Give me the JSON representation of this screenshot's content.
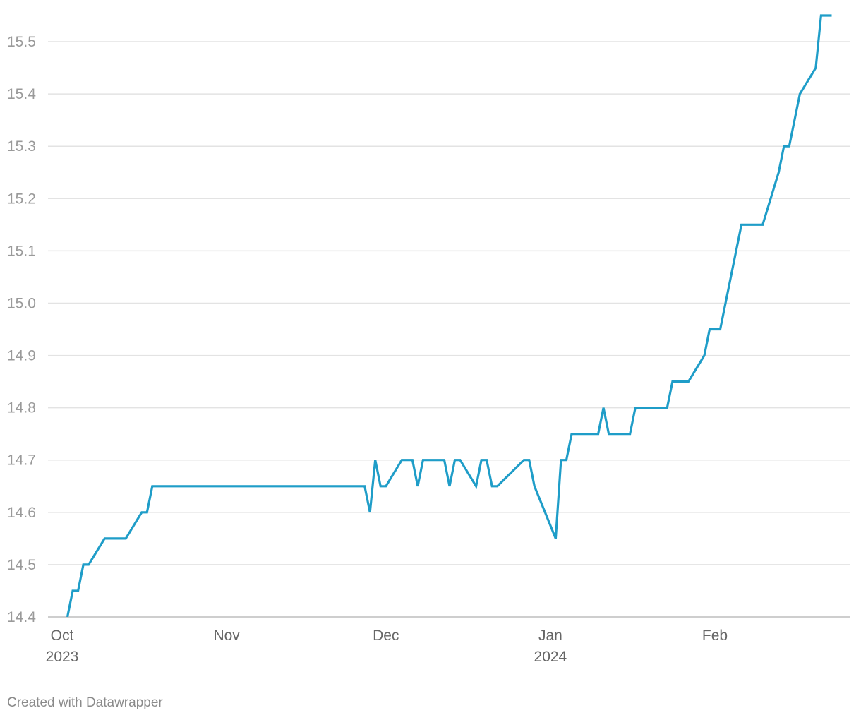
{
  "chart_data": {
    "type": "line",
    "title": "",
    "xlabel": "",
    "ylabel": "",
    "ylim": [
      14.4,
      15.55
    ],
    "xlim": [
      "2023-10-01",
      "2024-02-24"
    ],
    "y_ticks": [
      "14.4",
      "14.5",
      "14.6",
      "14.7",
      "14.8",
      "14.9",
      "15.0",
      "15.1",
      "15.2",
      "15.3",
      "15.4",
      "15.5"
    ],
    "x_ticks": [
      {
        "date": "2023-10-01",
        "label": "Oct",
        "sub": "2023"
      },
      {
        "date": "2023-11-01",
        "label": "Nov",
        "sub": ""
      },
      {
        "date": "2023-12-01",
        "label": "Dec",
        "sub": ""
      },
      {
        "date": "2024-01-01",
        "label": "Jan",
        "sub": "2024"
      },
      {
        "date": "2024-02-01",
        "label": "Feb",
        "sub": ""
      }
    ],
    "grid": true,
    "line_color": "#1f9dc8",
    "series": [
      {
        "points": [
          [
            "2023-10-02",
            14.4
          ],
          [
            "2023-10-03",
            14.45
          ],
          [
            "2023-10-04",
            14.45
          ],
          [
            "2023-10-05",
            14.5
          ],
          [
            "2023-10-06",
            14.5
          ],
          [
            "2023-10-09",
            14.55
          ],
          [
            "2023-10-13",
            14.55
          ],
          [
            "2023-10-16",
            14.6
          ],
          [
            "2023-10-17",
            14.6
          ],
          [
            "2023-10-18",
            14.65
          ],
          [
            "2023-11-27",
            14.65
          ],
          [
            "2023-11-28",
            14.6
          ],
          [
            "2023-11-29",
            14.7
          ],
          [
            "2023-11-30",
            14.65
          ],
          [
            "2023-12-01",
            14.65
          ],
          [
            "2023-12-04",
            14.7
          ],
          [
            "2023-12-06",
            14.7
          ],
          [
            "2023-12-07",
            14.65
          ],
          [
            "2023-12-08",
            14.7
          ],
          [
            "2023-12-12",
            14.7
          ],
          [
            "2023-12-13",
            14.65
          ],
          [
            "2023-12-14",
            14.7
          ],
          [
            "2023-12-15",
            14.7
          ],
          [
            "2023-12-18",
            14.65
          ],
          [
            "2023-12-19",
            14.7
          ],
          [
            "2023-12-20",
            14.7
          ],
          [
            "2023-12-21",
            14.65
          ],
          [
            "2023-12-22",
            14.65
          ],
          [
            "2023-12-27",
            14.7
          ],
          [
            "2023-12-28",
            14.7
          ],
          [
            "2023-12-29",
            14.65
          ],
          [
            "2024-01-02",
            14.55
          ],
          [
            "2024-01-03",
            14.7
          ],
          [
            "2024-01-04",
            14.7
          ],
          [
            "2024-01-05",
            14.75
          ],
          [
            "2024-01-10",
            14.75
          ],
          [
            "2024-01-11",
            14.8
          ],
          [
            "2024-01-12",
            14.75
          ],
          [
            "2024-01-16",
            14.75
          ],
          [
            "2024-01-17",
            14.8
          ],
          [
            "2024-01-23",
            14.8
          ],
          [
            "2024-01-24",
            14.85
          ],
          [
            "2024-01-27",
            14.85
          ],
          [
            "2024-01-30",
            14.9
          ],
          [
            "2024-01-31",
            14.95
          ],
          [
            "2024-02-02",
            14.95
          ],
          [
            "2024-02-06",
            15.15
          ],
          [
            "2024-02-10",
            15.15
          ],
          [
            "2024-02-13",
            15.25
          ],
          [
            "2024-02-14",
            15.3
          ],
          [
            "2024-02-15",
            15.3
          ],
          [
            "2024-02-17",
            15.4
          ],
          [
            "2024-02-20",
            15.45
          ],
          [
            "2024-02-21",
            15.55
          ],
          [
            "2024-02-23",
            15.55
          ]
        ]
      }
    ]
  },
  "footer": {
    "credit": "Created with Datawrapper"
  }
}
